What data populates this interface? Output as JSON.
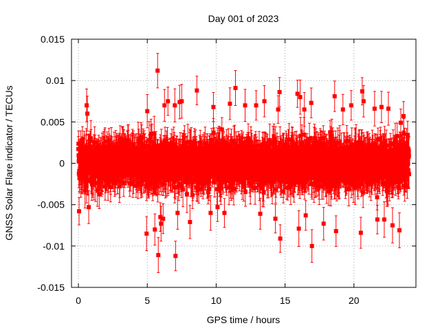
{
  "chart_data": {
    "type": "scatter",
    "title": "Day 001 of 2023",
    "xlabel": "GPS time / hours",
    "ylabel": "GNSS Solar Flare indicator / TECUs",
    "xlim": [
      -0.5,
      24.5
    ],
    "ylim": [
      -0.015,
      0.015
    ],
    "xticks": [
      0,
      5,
      10,
      15,
      20
    ],
    "xtick_labels": [
      "0",
      "5",
      "10",
      "15",
      "20"
    ],
    "yticks": [
      -0.015,
      -0.01,
      -0.005,
      0,
      0.005,
      0.01,
      0.015
    ],
    "ytick_labels": [
      "-0.015",
      "-0.01",
      "-0.005",
      "0",
      "0.005",
      "0.01",
      "0.015"
    ],
    "grid": true,
    "legend": "none",
    "series": [
      {
        "color": "#ff0000",
        "marker": "square",
        "error_bars": true,
        "typical_error": 0.0018,
        "x_range": [
          0,
          24
        ],
        "points": [
          [
            0.05,
            -0.0058
          ],
          [
            0.6,
            0.007
          ],
          [
            0.65,
            0.006
          ],
          [
            0.75,
            -0.0053
          ],
          [
            4.95,
            -0.0085
          ],
          [
            5.0,
            0.0063
          ],
          [
            5.55,
            -0.008
          ],
          [
            5.75,
            0.0112
          ],
          [
            5.8,
            -0.0111
          ],
          [
            5.95,
            -0.0065
          ],
          [
            6.0,
            -0.0073
          ],
          [
            6.15,
            -0.0067
          ],
          [
            6.25,
            0.007
          ],
          [
            6.5,
            0.0075
          ],
          [
            7.0,
            0.007
          ],
          [
            7.05,
            -0.0112
          ],
          [
            7.2,
            -0.006
          ],
          [
            7.35,
            0.0074
          ],
          [
            7.5,
            0.0075
          ],
          [
            8.1,
            -0.0071
          ],
          [
            8.6,
            0.0088
          ],
          [
            9.6,
            -0.006
          ],
          [
            9.8,
            0.0068
          ],
          [
            10.1,
            -0.0053
          ],
          [
            10.6,
            -0.006
          ],
          [
            11.0,
            0.0072
          ],
          [
            11.4,
            0.0091
          ],
          [
            12.1,
            0.007
          ],
          [
            12.9,
            0.007
          ],
          [
            13.2,
            -0.0061
          ],
          [
            13.5,
            0.0075
          ],
          [
            14.3,
            -0.0067
          ],
          [
            14.5,
            0.0065
          ],
          [
            14.6,
            0.0086
          ],
          [
            14.65,
            -0.0091
          ],
          [
            15.9,
            0.0084
          ],
          [
            16.0,
            -0.0079
          ],
          [
            16.1,
            0.008
          ],
          [
            16.4,
            0.0065
          ],
          [
            16.5,
            -0.0063
          ],
          [
            16.9,
            0.0073
          ],
          [
            16.95,
            -0.01
          ],
          [
            17.8,
            -0.0073
          ],
          [
            18.6,
            0.0081
          ],
          [
            18.7,
            -0.0082
          ],
          [
            19.2,
            0.0065
          ],
          [
            19.8,
            0.007
          ],
          [
            20.5,
            -0.0084
          ],
          [
            20.6,
            0.0087
          ],
          [
            20.7,
            0.0075
          ],
          [
            21.5,
            0.0066
          ],
          [
            21.7,
            -0.0068
          ],
          [
            22.0,
            0.0068
          ],
          [
            22.2,
            -0.0068
          ],
          [
            22.5,
            0.0066
          ],
          [
            22.8,
            -0.0075
          ],
          [
            23.3,
            -0.0081
          ],
          [
            23.4,
            0.0049
          ],
          [
            23.6,
            0.0057
          ]
        ]
      }
    ]
  }
}
